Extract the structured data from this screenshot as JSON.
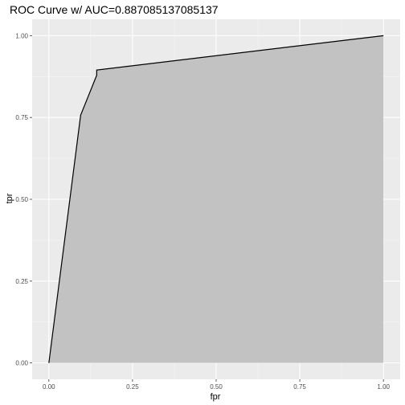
{
  "chart_data": {
    "type": "area",
    "title": "ROC Curve w/ AUC=0.887085137085137",
    "xlabel": "fpr",
    "ylabel": "tpr",
    "xlim": [
      -0.05,
      1.05
    ],
    "ylim": [
      -0.05,
      1.05
    ],
    "x_ticks": [
      0.0,
      0.25,
      0.5,
      0.75,
      1.0
    ],
    "x_tick_labels": [
      "0.00",
      "0.25",
      "0.50",
      "0.75",
      "1.00"
    ],
    "y_ticks": [
      0.0,
      0.25,
      0.5,
      0.75,
      1.0
    ],
    "y_tick_labels": [
      "0.00",
      "0.25",
      "0.50",
      "0.75",
      "1.00"
    ],
    "grid": true,
    "series": [
      {
        "x": [
          0.0,
          0.095,
          0.143,
          0.143,
          1.0
        ],
        "y": [
          0.0,
          0.757,
          0.879,
          0.895,
          1.0
        ]
      }
    ],
    "colors": {
      "panel_bg": "#ebebeb",
      "grid_major": "#ffffff",
      "grid_minor": "#f5f5f5",
      "area_fill": "#c2c2c2",
      "line": "#000000"
    }
  }
}
